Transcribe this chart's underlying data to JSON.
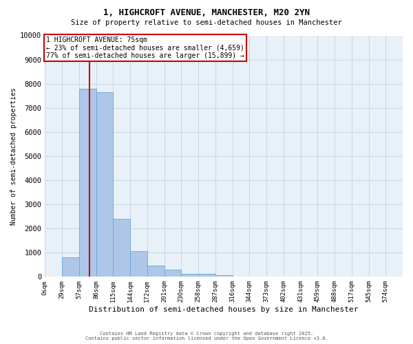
{
  "title_line1": "1, HIGHCROFT AVENUE, MANCHESTER, M20 2YN",
  "title_line2": "Size of property relative to semi-detached houses in Manchester",
  "xlabel": "Distribution of semi-detached houses by size in Manchester",
  "ylabel": "Number of semi-detached properties",
  "bar_color": "#aec6e8",
  "bar_edge_color": "#6aaad4",
  "bin_labels": [
    "0sqm",
    "29sqm",
    "57sqm",
    "86sqm",
    "115sqm",
    "144sqm",
    "172sqm",
    "201sqm",
    "230sqm",
    "258sqm",
    "287sqm",
    "316sqm",
    "344sqm",
    "373sqm",
    "402sqm",
    "431sqm",
    "459sqm",
    "488sqm",
    "517sqm",
    "545sqm",
    "574sqm"
  ],
  "bar_values": [
    0,
    820,
    7790,
    7640,
    2390,
    1050,
    460,
    290,
    130,
    110,
    60,
    0,
    0,
    0,
    0,
    0,
    0,
    0,
    0,
    0,
    0
  ],
  "ylim": [
    0,
    10000
  ],
  "yticks": [
    0,
    1000,
    2000,
    3000,
    4000,
    5000,
    6000,
    7000,
    8000,
    9000,
    10000
  ],
  "property_sqm": 75,
  "property_label": "1 HIGHCROFT AVENUE: 75sqm",
  "pct_smaller": 23,
  "pct_larger": 77,
  "count_smaller": 4659,
  "count_larger": 15899,
  "vline_color": "#cc0000",
  "annotation_box_color": "#cc0000",
  "grid_color": "#c8d8e8",
  "background_color": "#e8f0f8",
  "footnote1": "Contains HM Land Registry data © Crown copyright and database right 2025.",
  "footnote2": "Contains public sector information licensed under the Open Government Licence v3.0."
}
